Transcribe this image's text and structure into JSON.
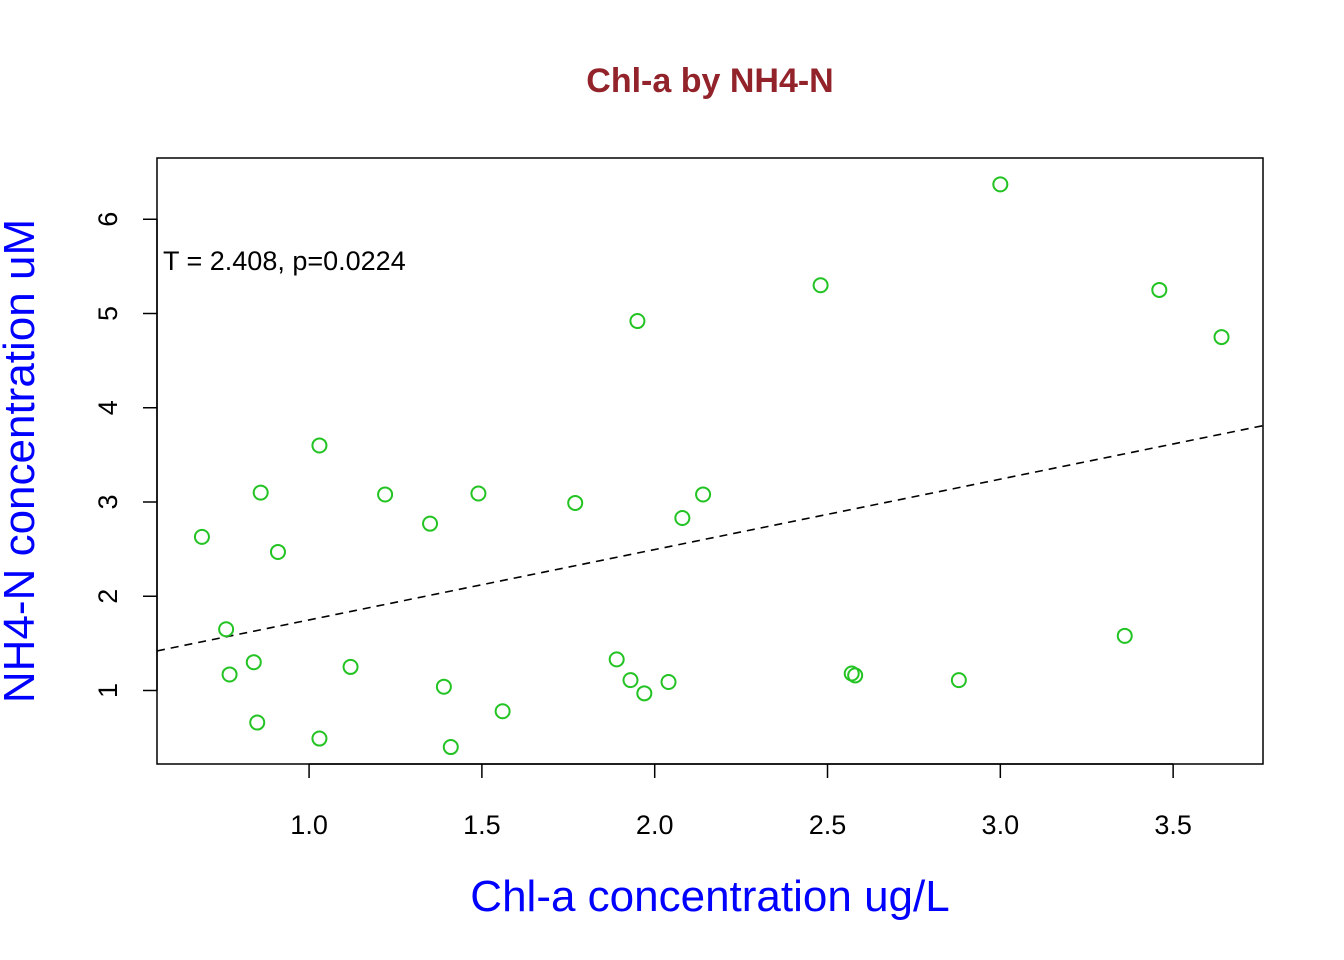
{
  "chart_data": {
    "type": "scatter",
    "title": "Chl-a by NH4-N",
    "xlabel": "Chl-a concentration ug/L",
    "ylabel": "NH4-N concentration uM",
    "annotation": "T = 2.408, p=0.0224",
    "xlim": [
      0.56,
      3.76
    ],
    "ylim": [
      0.22,
      6.65
    ],
    "x_ticks": [
      1.0,
      1.5,
      2.0,
      2.5,
      3.0,
      3.5
    ],
    "x_tick_labels": [
      "1.0",
      "1.5",
      "2.0",
      "2.5",
      "3.0",
      "3.5"
    ],
    "y_ticks": [
      1,
      2,
      3,
      4,
      5,
      6
    ],
    "y_tick_labels": [
      "1",
      "2",
      "3",
      "4",
      "5",
      "6"
    ],
    "grid": false,
    "colors": {
      "title": "#93232a",
      "axis_label": "#0000ff",
      "points": "#22c322",
      "fit_line": "#000000",
      "frame": "#000000"
    },
    "fit_line": {
      "style": "dashed",
      "x": [
        0.56,
        3.76
      ],
      "y": [
        1.42,
        3.81
      ]
    },
    "x": [
      0.69,
      0.76,
      0.77,
      0.84,
      0.85,
      0.86,
      0.91,
      1.03,
      1.03,
      1.12,
      1.22,
      1.35,
      1.39,
      1.41,
      1.49,
      1.56,
      1.77,
      1.89,
      1.93,
      1.95,
      1.97,
      2.04,
      2.08,
      2.14,
      2.48,
      2.57,
      2.58,
      2.88,
      3.0,
      3.36,
      3.46,
      3.64
    ],
    "y": [
      2.63,
      1.65,
      1.17,
      1.3,
      0.66,
      3.1,
      2.47,
      3.6,
      0.49,
      1.25,
      3.08,
      2.77,
      1.04,
      0.4,
      3.09,
      0.78,
      2.99,
      1.33,
      1.11,
      4.92,
      0.97,
      1.09,
      2.83,
      3.08,
      5.3,
      1.18,
      1.16,
      1.11,
      6.37,
      1.58,
      5.25,
      4.75
    ]
  }
}
